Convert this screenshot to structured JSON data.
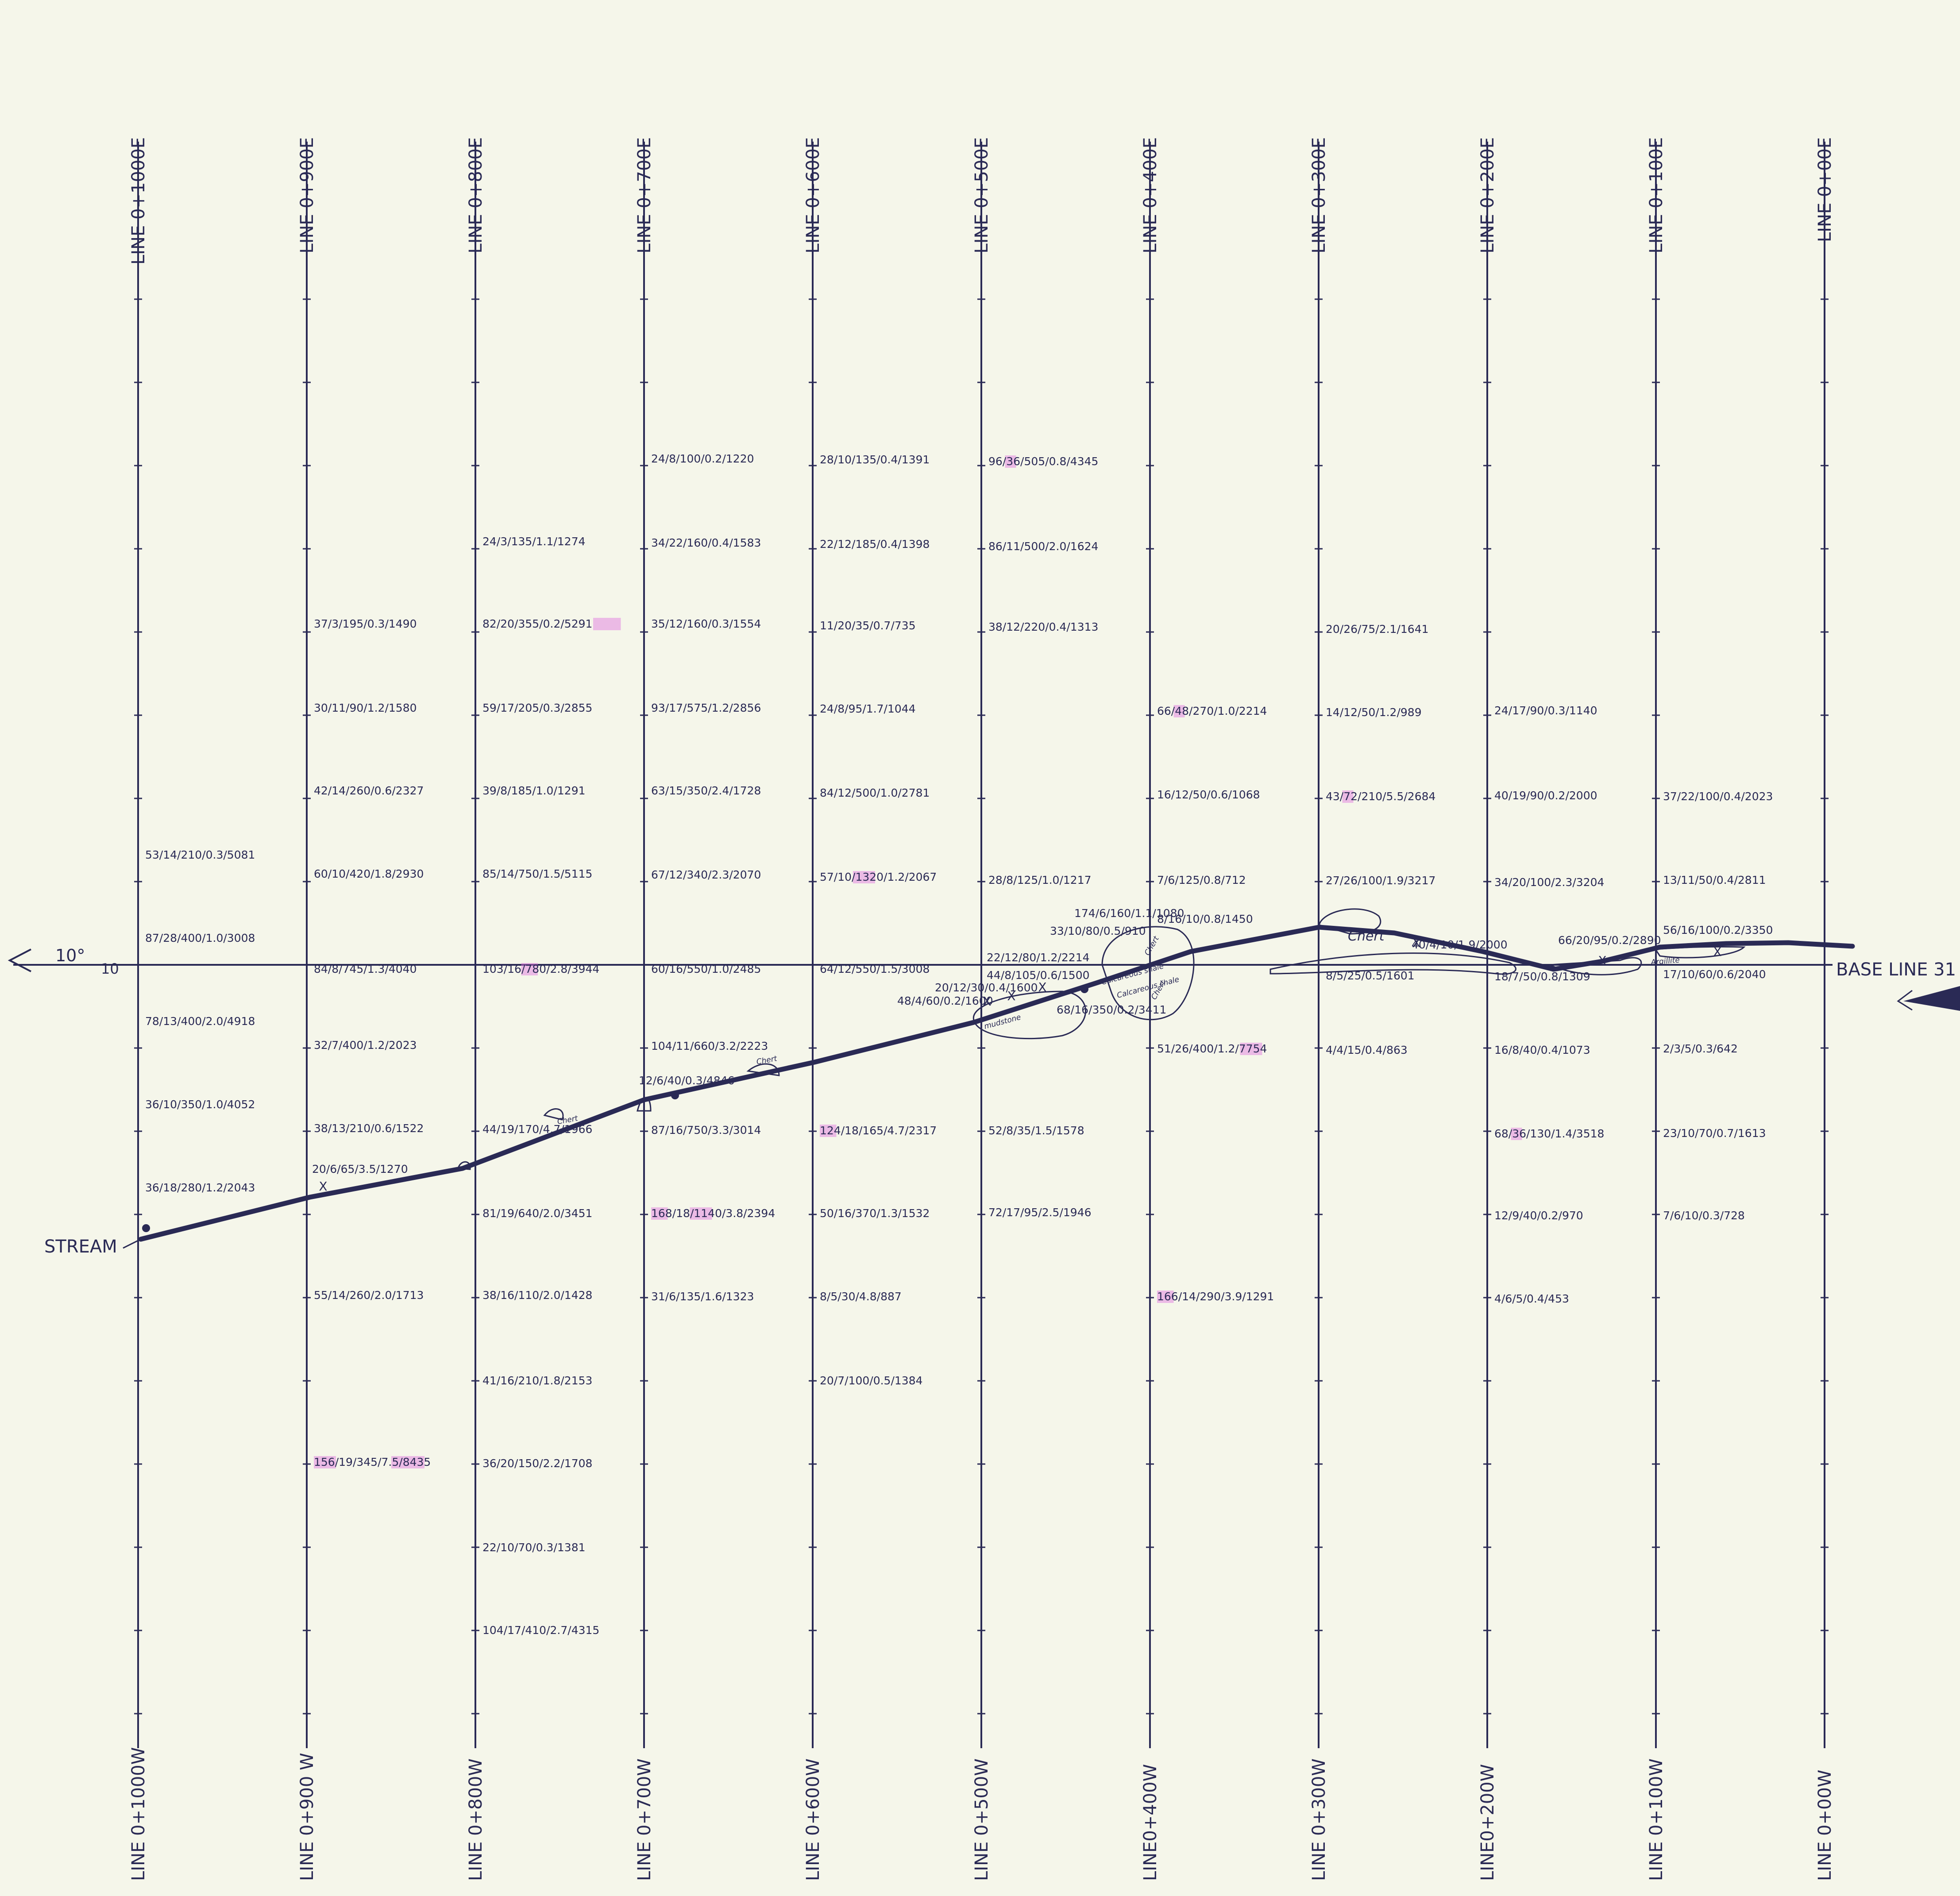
{
  "map": {
    "background": "#f5f6ea",
    "ink_color": "#2a2a55",
    "highlight_color": "#e070e0",
    "lines": [
      {
        "top": "LINE 0+1000E",
        "bottom": "LINE 0+1000W"
      },
      {
        "top": "LINE 0+900E",
        "bottom": "LINE 0+900 W"
      },
      {
        "top": "LINE 0+800E",
        "bottom": "LINE 0+800W"
      },
      {
        "top": "LINE 0+700E",
        "bottom": "LINE 0+700W"
      },
      {
        "top": "LINE 0+600E",
        "bottom": "LINE 0+600W"
      },
      {
        "top": "LINE 0+500E",
        "bottom": "LINE 0+500W"
      },
      {
        "top": "LINE 0+400E",
        "bottom": "LINE0+400W"
      },
      {
        "top": "LINE 0+300E",
        "bottom": "LINE 0+300W"
      },
      {
        "top": "LINE 0+200E",
        "bottom": "LINE0+200W"
      },
      {
        "top": "LINE 0+100E",
        "bottom": "LINE 0+100W"
      },
      {
        "top": "LINE 0+00E",
        "bottom": "LINE 0+00W"
      }
    ],
    "base_line_label": "BASE LINE 31",
    "stream_label": "STREAM",
    "angle_label": "10°",
    "angle_sublabel": "10",
    "samples": [
      {
        "line": 0,
        "row": 5,
        "text": "53/14/210/0.3/5081"
      },
      {
        "line": 0,
        "row": 6,
        "text": "87/28/400/1.0/3008"
      },
      {
        "line": 0,
        "row": 7,
        "text": "78/13/400/2.0/4918"
      },
      {
        "line": 0,
        "row": 8,
        "text": "36/10/350/1.0/4052"
      },
      {
        "line": 0,
        "row": 9,
        "text": "36/18/280/1.2/2043"
      },
      {
        "line": 1,
        "row": 0,
        "text": "37/3/195/0.3/1490"
      },
      {
        "line": 1,
        "row": 1,
        "text": "30/11/90/1.2/1580"
      },
      {
        "line": 1,
        "row": 2,
        "text": "42/14/260/0.6/2327"
      },
      {
        "line": 1,
        "row": 3,
        "text": "60/10/420/1.8/2930"
      },
      {
        "line": 1,
        "row": 4,
        "text": "84/8/745/1.3/4040"
      },
      {
        "line": 1,
        "row": 5,
        "text": "32/7/400/1.2/2023"
      },
      {
        "line": 1,
        "row": 6,
        "text": "38/13/210/0.6/1522"
      },
      {
        "line": 1,
        "row": 7,
        "text": "20/6/65/3.5/1270"
      },
      {
        "line": 1,
        "row": 8,
        "text": "55/14/260/2.0/1713"
      },
      {
        "line": 1,
        "row": 9,
        "text": "156/19/345/7.5/8435"
      },
      {
        "line": 2,
        "row": 0,
        "text": "24/3/135/1.1/1274"
      },
      {
        "line": 2,
        "row": 1,
        "text": "82/20/355/0.2/5291"
      },
      {
        "line": 2,
        "row": 2,
        "text": "59/17/205/0.3/2855"
      },
      {
        "line": 2,
        "row": 3,
        "text": "39/8/185/1.0/1291"
      },
      {
        "line": 2,
        "row": 4,
        "text": "85/14/750/1.5/5115"
      },
      {
        "line": 2,
        "row": 5,
        "text": "103/16/780/2.8/3944"
      },
      {
        "line": 2,
        "row": 6,
        "text": "44/19/170/4.7/1966"
      },
      {
        "line": 2,
        "row": 7,
        "text": "81/19/640/2.0/3451"
      },
      {
        "line": 2,
        "row": 8,
        "text": "38/16/110/2.0/1428"
      },
      {
        "line": 2,
        "row": 9,
        "text": "41/16/210/1.8/2153"
      },
      {
        "line": 2,
        "row": 10,
        "text": "36/20/150/2.2/1708"
      },
      {
        "line": 2,
        "row": 11,
        "text": "22/10/70/0.3/1381"
      },
      {
        "line": 2,
        "row": 12,
        "text": "104/17/410/2.7/4315"
      },
      {
        "line": 3,
        "row": 0,
        "text": "24/8/100/0.2/1220"
      },
      {
        "line": 3,
        "row": 1,
        "text": "34/22/160/0.4/1583"
      },
      {
        "line": 3,
        "row": 2,
        "text": "35/12/160/0.3/1554"
      },
      {
        "line": 3,
        "row": 3,
        "text": "93/17/575/1.2/2856"
      },
      {
        "line": 3,
        "row": 4,
        "text": "63/15/350/2.4/1728"
      },
      {
        "line": 3,
        "row": 5,
        "text": "67/12/340/2.3/2070"
      },
      {
        "line": 3,
        "row": 6,
        "text": "60/16/550/1.0/2485"
      },
      {
        "line": 3,
        "row": 7,
        "text": "104/11/660/3.2/2223"
      },
      {
        "line": 3,
        "row": 8,
        "text": "12/6/40/0.3/4846"
      },
      {
        "line": 3,
        "row": 9,
        "text": "87/16/750/3.3/3014"
      },
      {
        "line": 3,
        "row": 10,
        "text": "168/18/1140/3.8/2394"
      },
      {
        "line": 3,
        "row": 11,
        "text": "31/6/135/1.6/1323"
      },
      {
        "line": 4,
        "row": 0,
        "text": "28/10/135/0.4/1391"
      },
      {
        "line": 4,
        "row": 1,
        "text": "22/12/185/0.4/1398"
      },
      {
        "line": 4,
        "row": 2,
        "text": "11/20/35/0.7/735"
      },
      {
        "line": 4,
        "row": 3,
        "text": "24/8/95/1.7/1044"
      },
      {
        "line": 4,
        "row": 4,
        "text": "84/12/500/1.0/2781"
      },
      {
        "line": 4,
        "row": 5,
        "text": "57/10/1320/1.2/2067"
      },
      {
        "line": 4,
        "row": 6,
        "text": "64/12/550/1.5/3008"
      },
      {
        "line": 4,
        "row": 7,
        "text": "124/18/165/4.7/2317"
      },
      {
        "line": 4,
        "row": 8,
        "text": "50/16/370/1.3/1532"
      },
      {
        "line": 4,
        "row": 9,
        "text": "8/5/30/4.8/887"
      },
      {
        "line": 4,
        "row": 10,
        "text": "20/7/100/0.5/1384"
      },
      {
        "line": 5,
        "row": 0,
        "text": "96/36/505/0.8/4345"
      },
      {
        "line": 5,
        "row": 1,
        "text": "86/11/500/2.0/1624"
      },
      {
        "line": 5,
        "row": 2,
        "text": "38/12/220/0.4/1313"
      },
      {
        "line": 5,
        "row": 3,
        "text": "28/8/125/1.0/1217"
      },
      {
        "line": 5,
        "row": 4,
        "text": "22/12/80/1.2/2214"
      },
      {
        "line": 5,
        "row": 5,
        "text": "44/8/105/0.6/1500"
      },
      {
        "line": 5,
        "row": 6,
        "text": "20/12/30/0.4/1600"
      },
      {
        "line": 5,
        "row": 7,
        "text": "48/4/60/0.2/1600"
      },
      {
        "line": 5,
        "row": 8,
        "text": "52/8/35/1.5/1578"
      },
      {
        "line": 5,
        "row": 9,
        "text": "72/17/95/2.5/1946"
      },
      {
        "line": 5,
        "row": 10,
        "text": "174/6/160/1.1/1080"
      },
      {
        "line": 5,
        "row": 11,
        "text": "33/10/80/0.5/910"
      },
      {
        "line": 5,
        "row": 12,
        "text": "68/16/350/0.2/3411"
      },
      {
        "line": 6,
        "row": 0,
        "text": "66/48/270/1.0/2214"
      },
      {
        "line": 6,
        "row": 1,
        "text": "16/12/50/0.6/1068"
      },
      {
        "line": 6,
        "row": 2,
        "text": "7/6/125/0.8/712"
      },
      {
        "line": 6,
        "row": 3,
        "text": "8/16/10/0.8/1450"
      },
      {
        "line": 6,
        "row": 4,
        "text": "51/26/400/1.2/7754"
      },
      {
        "line": 6,
        "row": 5,
        "text": "166/14/290/3.9/1291"
      },
      {
        "line": 7,
        "row": 0,
        "text": "20/26/75/2.1/1641"
      },
      {
        "line": 7,
        "row": 1,
        "text": "14/12/50/1.2/989"
      },
      {
        "line": 7,
        "row": 2,
        "text": "43/72/210/5.5/2684"
      },
      {
        "line": 7,
        "row": 3,
        "text": "27/26/100/1.9/3217"
      },
      {
        "line": 7,
        "row": 4,
        "text": "8/5/25/0.5/1601"
      },
      {
        "line": 7,
        "row": 5,
        "text": "4/4/15/0.4/863"
      },
      {
        "line": 7,
        "row": 6,
        "text": "40/4/10/1.9/2000"
      },
      {
        "line": 8,
        "row": 0,
        "text": "24/17/90/0.3/1140"
      },
      {
        "line": 8,
        "row": 1,
        "text": "40/19/90/0.2/2000"
      },
      {
        "line": 8,
        "row": 2,
        "text": "34/20/100/2.3/3204"
      },
      {
        "line": 8,
        "row": 3,
        "text": "18/7/50/0.8/1309"
      },
      {
        "line": 8,
        "row": 4,
        "text": "16/8/40/0.4/1073"
      },
      {
        "line": 8,
        "row": 5,
        "text": "68/36/130/1.4/3518"
      },
      {
        "line": 8,
        "row": 6,
        "text": "12/9/40/0.2/970"
      },
      {
        "line": 8,
        "row": 7,
        "text": "4/6/5/0.4/453"
      },
      {
        "line": 8,
        "row": 8,
        "text": "66/20/95/0.2/2890"
      },
      {
        "line": 9,
        "row": 0,
        "text": "37/22/100/0.4/2023"
      },
      {
        "line": 9,
        "row": 1,
        "text": "13/11/50/0.4/2811"
      },
      {
        "line": 9,
        "row": 2,
        "text": "56/16/100/0.2/3350"
      },
      {
        "line": 9,
        "row": 3,
        "text": "17/10/60/0.6/2040"
      },
      {
        "line": 9,
        "row": 4,
        "text": "2/3/5/0.3/642"
      },
      {
        "line": 9,
        "row": 5,
        "text": "23/10/70/0.7/1613"
      },
      {
        "line": 9,
        "row": 6,
        "text": "7/6/10/0.3/728"
      }
    ],
    "geology_labels": [
      "Chert",
      "Chert",
      "Chert",
      "Chert",
      "Chert",
      "mudstone",
      "Calcareous shale",
      "Calcareous shale",
      "Argillite"
    ]
  }
}
